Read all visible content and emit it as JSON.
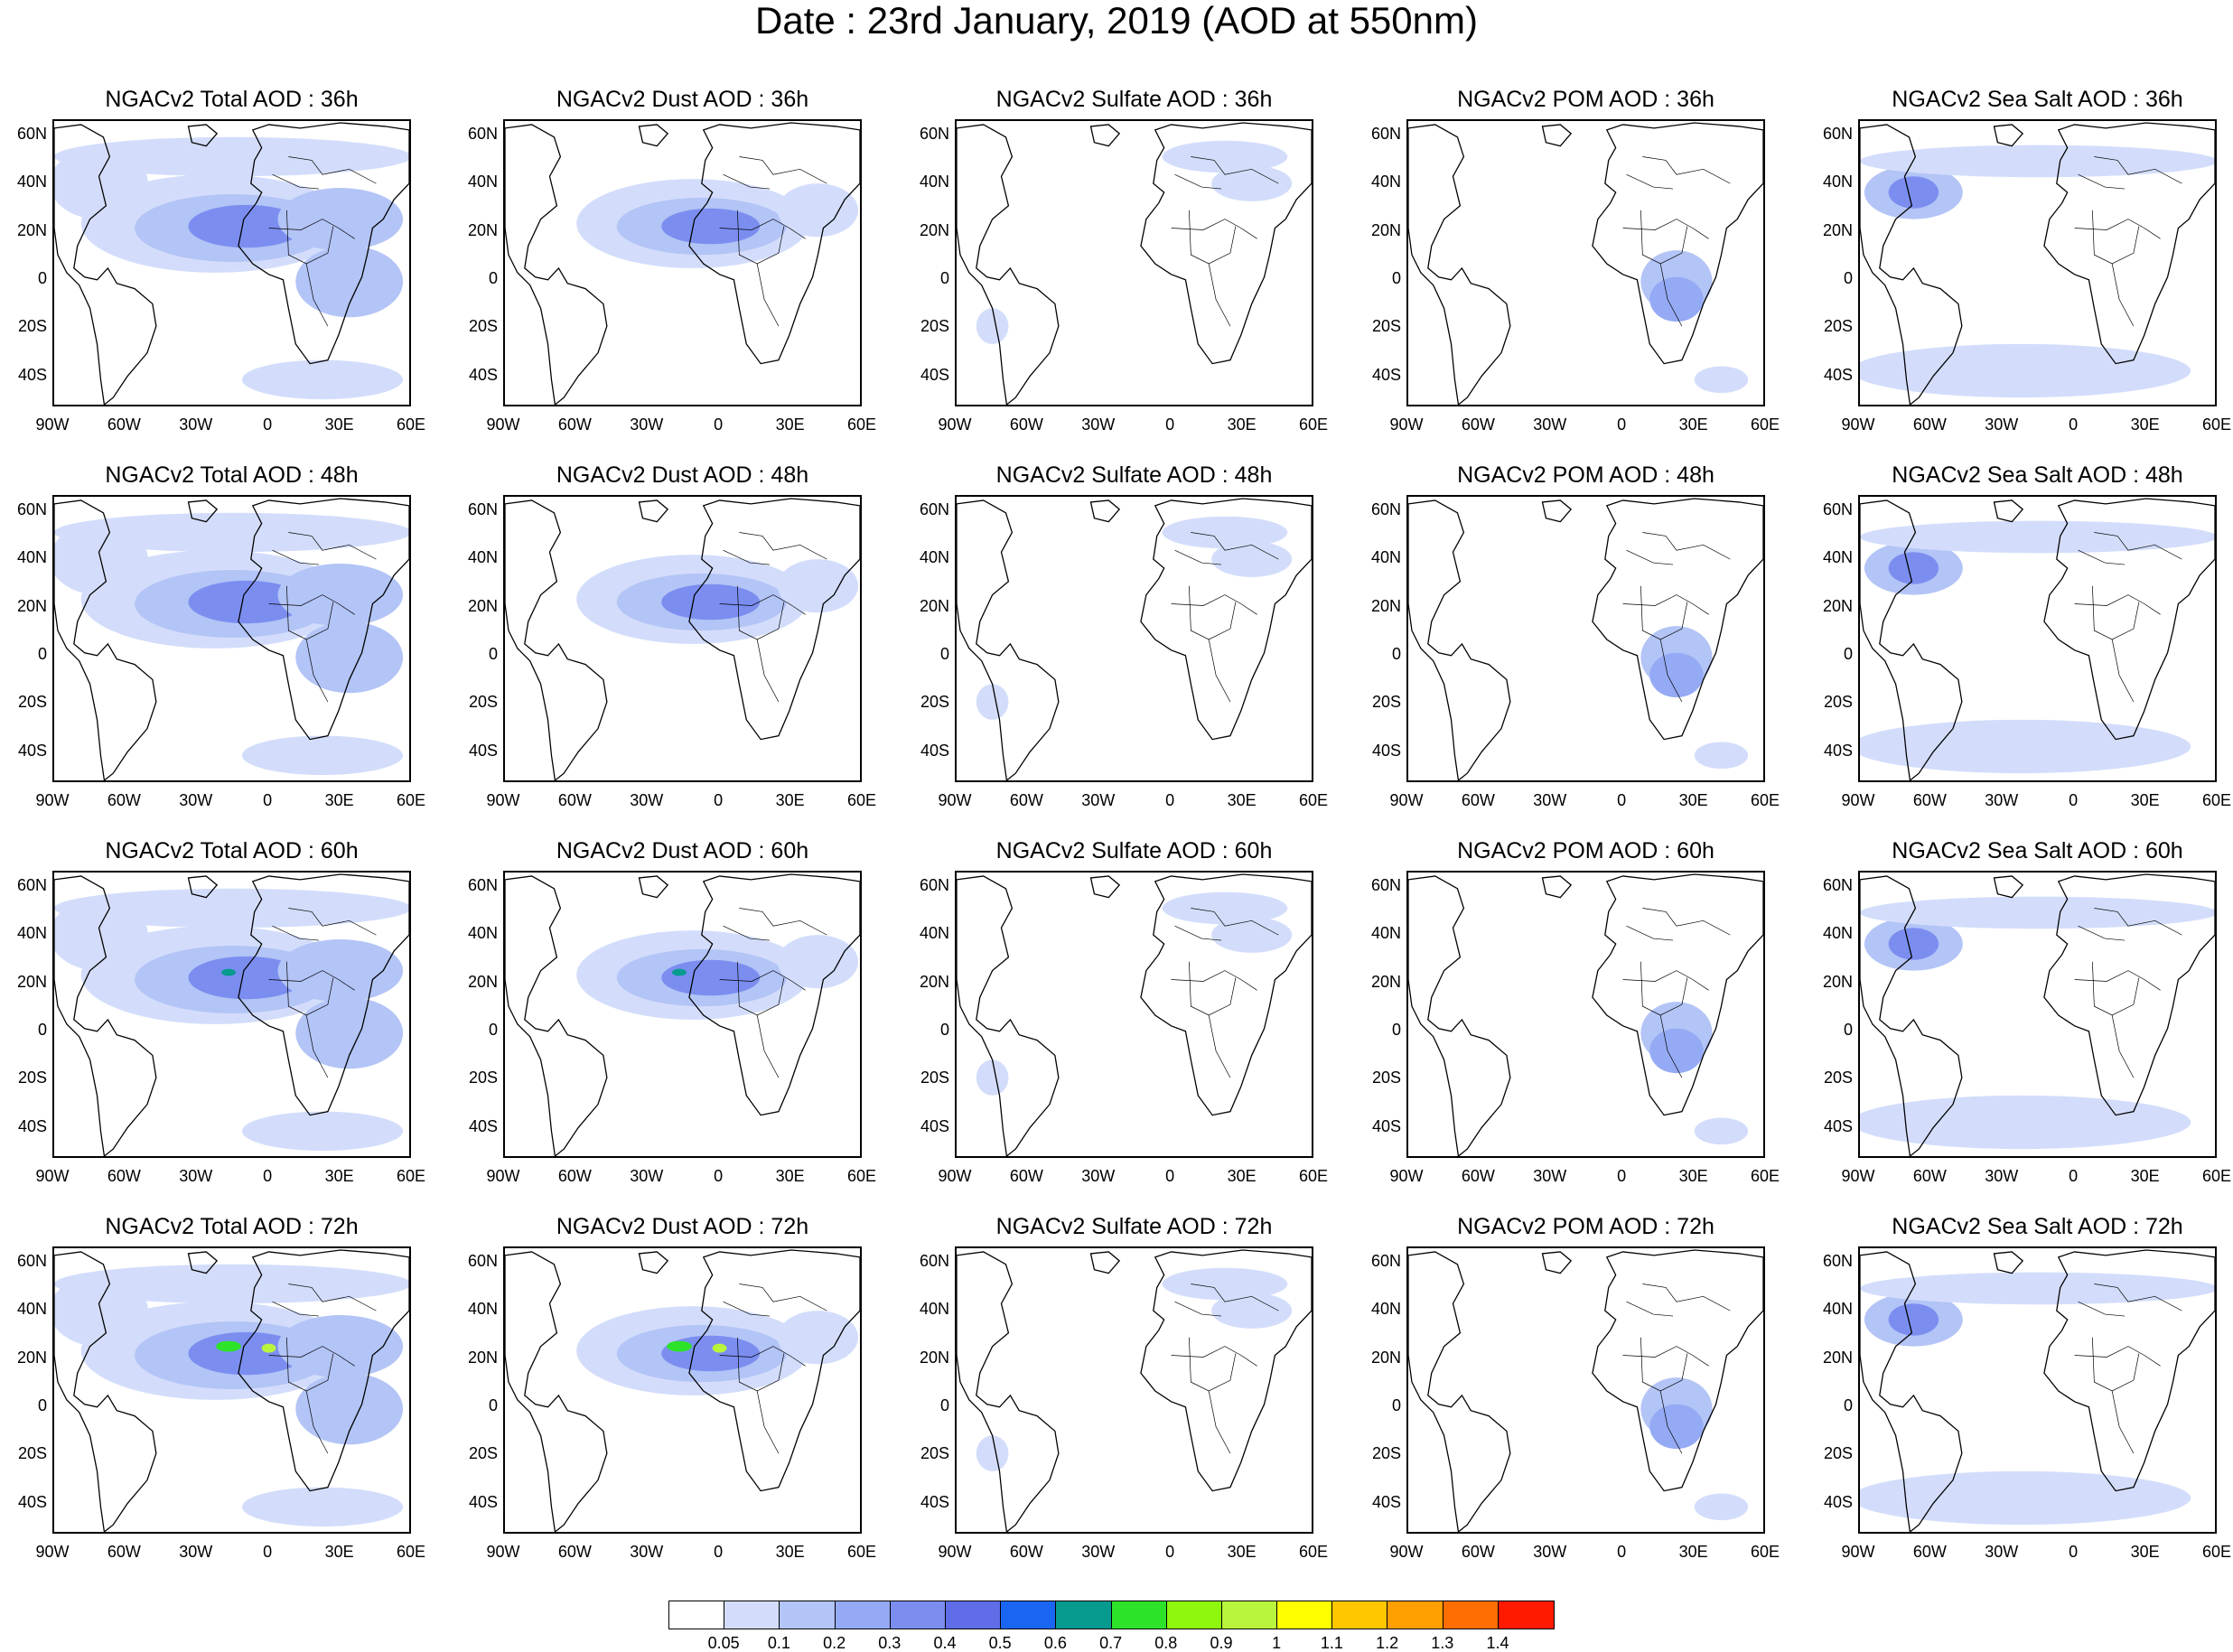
{
  "title": "Date : 23rd January, 2019 (AOD at 550nm)",
  "panels": [
    [
      "NGACv2 Total AOD : 36h",
      "NGACv2 Dust AOD : 36h",
      "NGACv2 Sulfate AOD : 36h",
      "NGACv2 POM AOD : 36h",
      "NGACv2 Sea Salt AOD : 36h"
    ],
    [
      "NGACv2 Total AOD : 48h",
      "NGACv2 Dust AOD : 48h",
      "NGACv2 Sulfate AOD : 48h",
      "NGACv2 POM AOD : 48h",
      "NGACv2 Sea Salt AOD : 48h"
    ],
    [
      "NGACv2 Total AOD : 60h",
      "NGACv2 Dust AOD : 60h",
      "NGACv2 Sulfate AOD : 60h",
      "NGACv2 POM AOD : 60h",
      "NGACv2 Sea Salt AOD : 60h"
    ],
    [
      "NGACv2 Total AOD : 72h",
      "NGACv2 Dust AOD : 72h",
      "NGACv2 Sulfate AOD : 72h",
      "NGACv2 POM AOD : 72h",
      "NGACv2 Sea Salt  AOD : 72h"
    ]
  ],
  "axes": {
    "lat_labels": [
      "60N",
      "40N",
      "20N",
      "0",
      "20S",
      "40S"
    ],
    "lon_labels": [
      "90W",
      "60W",
      "30W",
      "0",
      "30E",
      "60E"
    ]
  },
  "colorbar": {
    "colors": [
      "#ffffff",
      "#d3ddfb",
      "#b3c4f6",
      "#94aaf4",
      "#7b8ef0",
      "#5f6de8",
      "#1a66f2",
      "#079a8f",
      "#2de32a",
      "#8ef70d",
      "#b9f53c",
      "#ffff00",
      "#ffc700",
      "#ff9f00",
      "#ff6e00",
      "#ff1a00"
    ],
    "labels": [
      "0.05",
      "0.1",
      "0.2",
      "0.3",
      "0.4",
      "0.5",
      "0.6",
      "0.7",
      "0.8",
      "0.9",
      "1",
      "1.1",
      "1.2",
      "1.3",
      "1.4"
    ]
  }
}
